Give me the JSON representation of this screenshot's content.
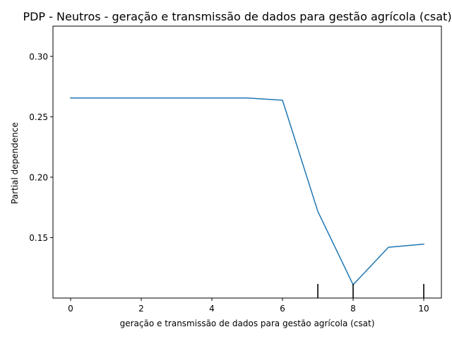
{
  "chart_data": {
    "type": "line",
    "title": "PDP - Neutros - geração e transmissão de dados para gestão agrícola (csat)",
    "xlabel": "geração e transmissão de dados para gestão agrícola (csat)",
    "ylabel": "Partial dependence",
    "xlim": [
      -0.5,
      10.5
    ],
    "ylim": [
      0.1,
      0.325
    ],
    "x_ticks": [
      0,
      2,
      4,
      6,
      8,
      10
    ],
    "y_ticks": [
      0.15,
      0.2,
      0.25,
      0.3
    ],
    "grid": false,
    "legend": false,
    "series": [
      {
        "color": "#1f77b4",
        "x": [
          0,
          1,
          2,
          3,
          4,
          5,
          6,
          7,
          8,
          9,
          10
        ],
        "y": [
          0.2655,
          0.2655,
          0.2655,
          0.2655,
          0.2655,
          0.2655,
          0.2637,
          0.1717,
          0.111,
          0.142,
          0.1446
        ]
      }
    ],
    "rug_x": [
      7,
      8,
      10
    ],
    "rug_color": "#000000"
  }
}
